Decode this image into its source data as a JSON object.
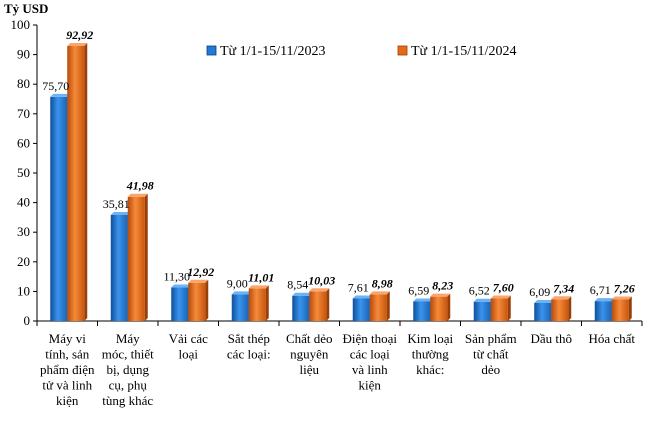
{
  "chart_data": {
    "type": "bar",
    "unit_label": "Tỷ USD",
    "ylim": [
      0,
      100
    ],
    "yticks": [
      0,
      10,
      20,
      30,
      40,
      50,
      60,
      70,
      80,
      90,
      100
    ],
    "grid": false,
    "legend_position": "top-right",
    "categories": [
      [
        "Máy vi",
        "tính, sản",
        "phẩm điện",
        "tử và linh",
        "kiện"
      ],
      [
        "Máy",
        "móc, thiết",
        "bị, dụng",
        "cụ, phụ",
        "tùng khác"
      ],
      [
        "Vải các",
        "loại"
      ],
      [
        "Sắt thép",
        "các loại:"
      ],
      [
        "Chất dẻo",
        "nguyên",
        "liệu"
      ],
      [
        "Điện thoại",
        "các loại",
        "và linh",
        "kiện"
      ],
      [
        "Kim loại",
        "thường",
        "khác:"
      ],
      [
        "Sản phẩm",
        "từ chất",
        "dẻo"
      ],
      [
        "Dầu thô"
      ],
      [
        "Hóa chất"
      ]
    ],
    "series": [
      {
        "name": "Từ 1/1-15/11/2023",
        "color": "#1f7bd6",
        "values": [
          75.7,
          35.81,
          11.3,
          9.0,
          8.54,
          7.61,
          6.59,
          6.52,
          6.09,
          6.71
        ],
        "labels": [
          "75,70",
          "35,81",
          "11,30",
          "9,00",
          "8,54",
          "7,61",
          "6,59",
          "6,52",
          "6,09",
          "6,71"
        ]
      },
      {
        "name": "Từ 1/1-15/11/2024",
        "color": "#ea6a12",
        "values": [
          92.92,
          41.98,
          12.92,
          11.01,
          10.03,
          8.98,
          8.23,
          7.6,
          7.34,
          7.26
        ],
        "labels": [
          "92,92",
          "41,98",
          "12,92",
          "11,01",
          "10,03",
          "8,98",
          "8,23",
          "7,60",
          "7,34",
          "7,26"
        ]
      }
    ]
  }
}
